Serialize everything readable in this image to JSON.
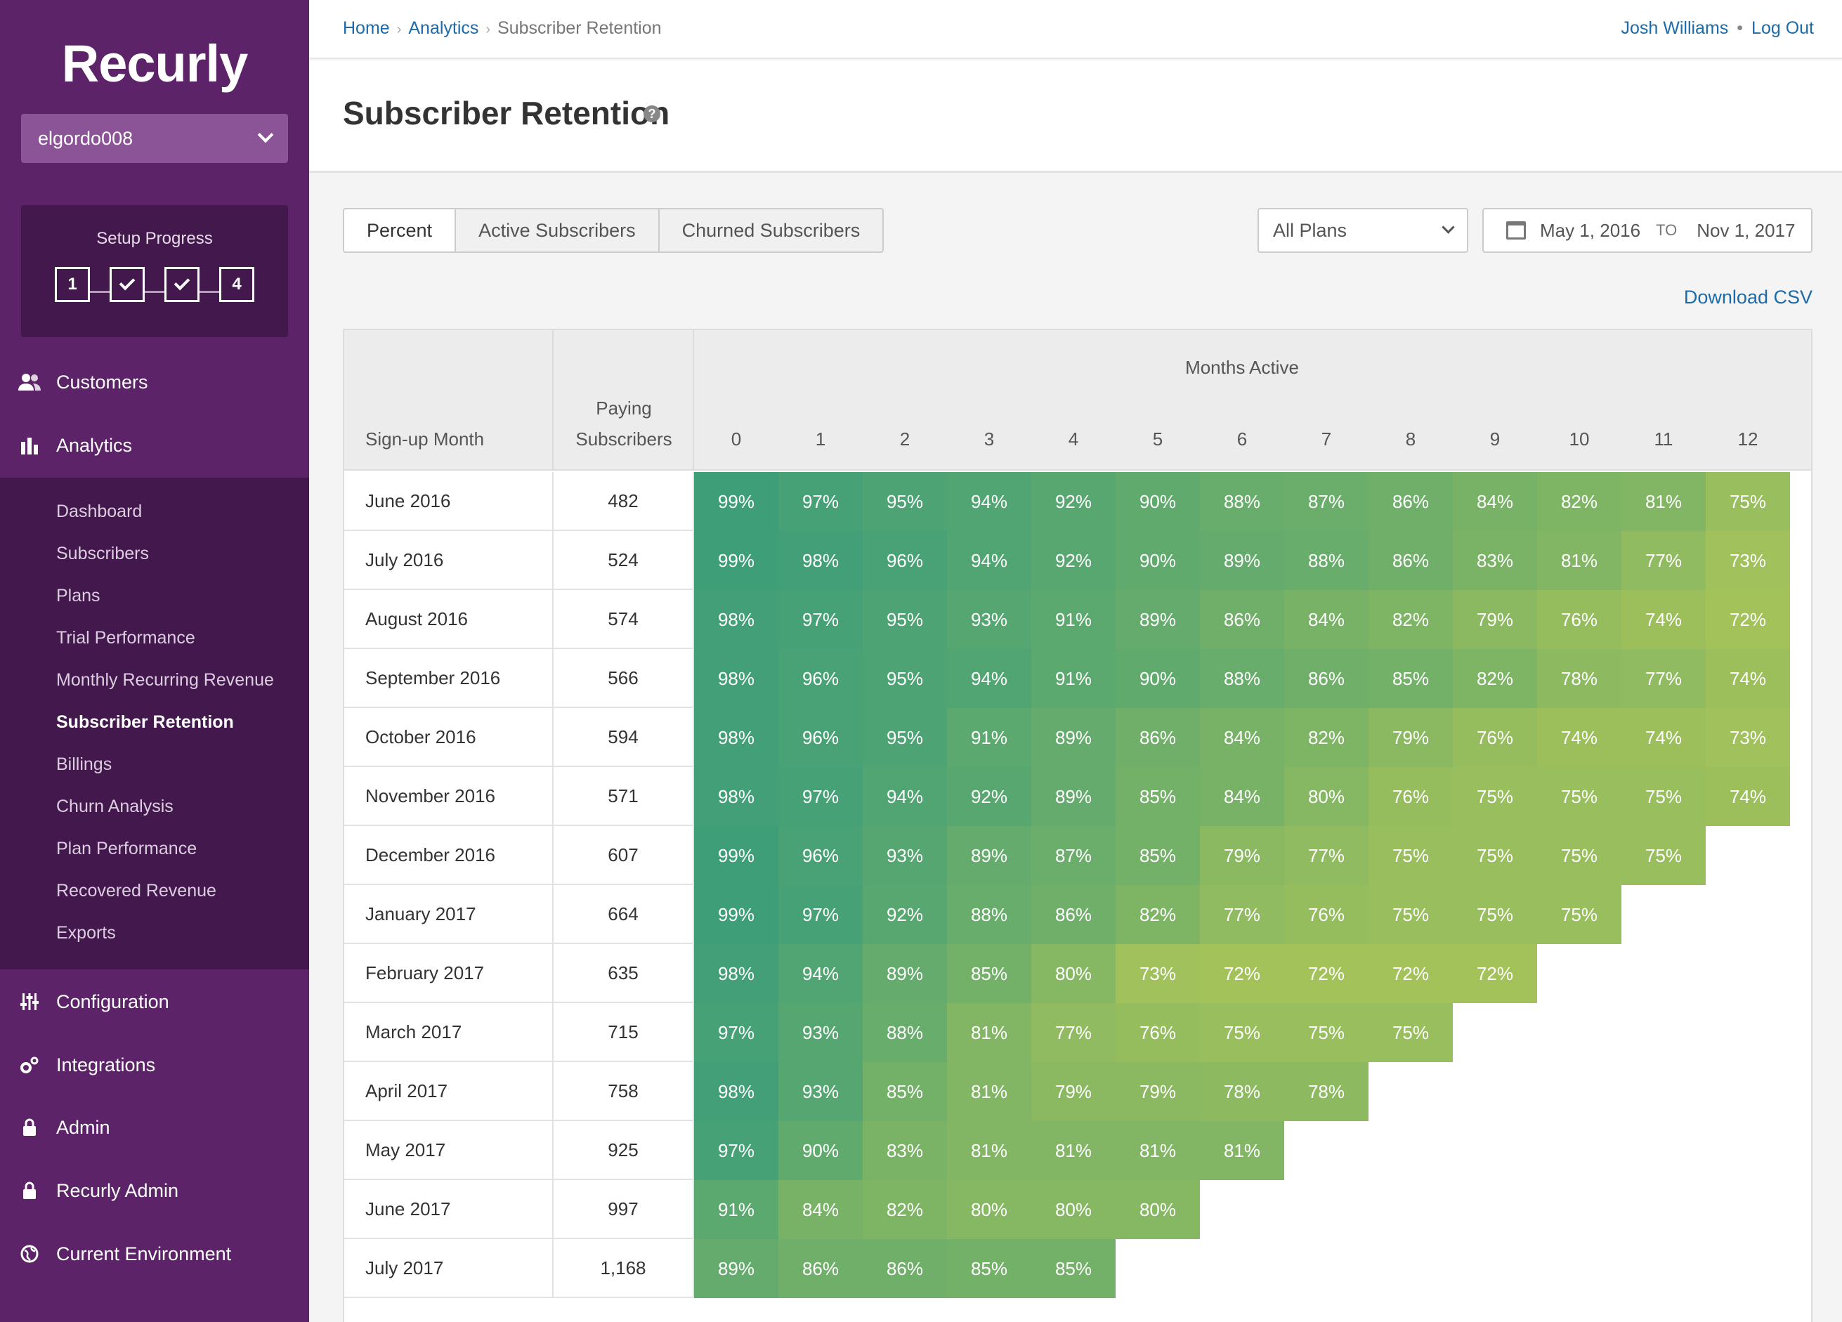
{
  "app": {
    "logo": "Recurly",
    "site": "elgordo008"
  },
  "setup": {
    "title": "Setup Progress",
    "step1": "1",
    "step4": "4"
  },
  "nav": {
    "customers": "Customers",
    "analytics": "Analytics",
    "configuration": "Configuration",
    "integrations": "Integrations",
    "admin": "Admin",
    "recurly_admin": "Recurly Admin",
    "current_env": "Current Environment"
  },
  "subnav": [
    "Dashboard",
    "Subscribers",
    "Plans",
    "Trial Performance",
    "Monthly Recurring Revenue",
    "Subscriber Retention",
    "Billings",
    "Churn Analysis",
    "Plan Performance",
    "Recovered Revenue",
    "Exports"
  ],
  "breadcrumb": {
    "home": "Home",
    "analytics": "Analytics",
    "current": "Subscriber Retention"
  },
  "user": {
    "name": "Josh Williams",
    "logout": "Log Out"
  },
  "page": {
    "title": "Subscriber Retention"
  },
  "tabs": [
    "Percent",
    "Active Subscribers",
    "Churned Subscribers"
  ],
  "filters": {
    "plan": "All Plans",
    "date_from": "May 1, 2016",
    "to_label": "TO",
    "date_to": "Nov 1, 2017"
  },
  "download": "Download CSV",
  "table": {
    "col_signup": "Sign-up Month",
    "col_paying_1": "Paying",
    "col_paying_2": "Subscribers",
    "months_active": "Months Active",
    "months": [
      "0",
      "1",
      "2",
      "3",
      "4",
      "5",
      "6",
      "7",
      "8",
      "9",
      "10",
      "11",
      "12"
    ],
    "rows": [
      {
        "month": "June 2016",
        "paying": "482",
        "vals": [
          99,
          97,
          95,
          94,
          92,
          90,
          88,
          87,
          86,
          84,
          82,
          81,
          75
        ]
      },
      {
        "month": "July 2016",
        "paying": "524",
        "vals": [
          99,
          98,
          96,
          94,
          92,
          90,
          89,
          88,
          86,
          83,
          81,
          77,
          73
        ]
      },
      {
        "month": "August 2016",
        "paying": "574",
        "vals": [
          98,
          97,
          95,
          93,
          91,
          89,
          86,
          84,
          82,
          79,
          76,
          74,
          72
        ]
      },
      {
        "month": "September 2016",
        "paying": "566",
        "vals": [
          98,
          96,
          95,
          94,
          91,
          90,
          88,
          86,
          85,
          82,
          78,
          77,
          74
        ]
      },
      {
        "month": "October 2016",
        "paying": "594",
        "vals": [
          98,
          96,
          95,
          91,
          89,
          86,
          84,
          82,
          79,
          76,
          74,
          74,
          73
        ]
      },
      {
        "month": "November 2016",
        "paying": "571",
        "vals": [
          98,
          97,
          94,
          92,
          89,
          85,
          84,
          80,
          76,
          75,
          75,
          75,
          74
        ]
      },
      {
        "month": "December 2016",
        "paying": "607",
        "vals": [
          99,
          96,
          93,
          89,
          87,
          85,
          79,
          77,
          75,
          75,
          75,
          75
        ]
      },
      {
        "month": "January 2017",
        "paying": "664",
        "vals": [
          99,
          97,
          92,
          88,
          86,
          82,
          77,
          76,
          75,
          75,
          75
        ]
      },
      {
        "month": "February 2017",
        "paying": "635",
        "vals": [
          98,
          94,
          89,
          85,
          80,
          73,
          72,
          72,
          72,
          72
        ]
      },
      {
        "month": "March 2017",
        "paying": "715",
        "vals": [
          97,
          93,
          88,
          81,
          77,
          76,
          75,
          75,
          75
        ]
      },
      {
        "month": "April 2017",
        "paying": "758",
        "vals": [
          98,
          93,
          85,
          81,
          79,
          79,
          78,
          78
        ]
      },
      {
        "month": "May 2017",
        "paying": "925",
        "vals": [
          97,
          90,
          83,
          81,
          81,
          81,
          81
        ]
      },
      {
        "month": "June 2017",
        "paying": "997",
        "vals": [
          91,
          84,
          82,
          80,
          80,
          80
        ]
      },
      {
        "month": "July 2017",
        "paying": "1,168",
        "vals": [
          89,
          86,
          86,
          85,
          85
        ]
      }
    ]
  },
  "colors": {
    "sidebar": "#5c2369",
    "sidebar_dark": "#43184d",
    "link": "#1d6ba8",
    "heat_high": "#3e9e78",
    "heat_low": "#a4c25a"
  }
}
